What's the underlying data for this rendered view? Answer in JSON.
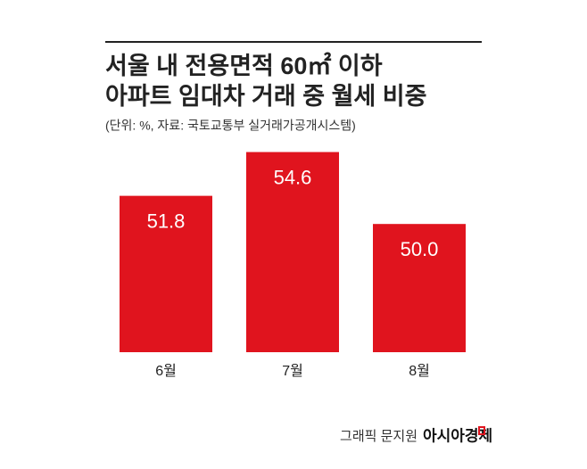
{
  "chart_data": {
    "type": "bar",
    "title": [
      "서울 내 전용면적 60㎡ 이하",
      "아파트 임대차 거래 중 월세 비중"
    ],
    "subtitle": "(단위: %, 자료: 국토교통부 실거래가공개시스템)",
    "categories": [
      "6월",
      "7월",
      "8월"
    ],
    "values": [
      51.8,
      54.6,
      50.0
    ],
    "value_labels": [
      "51.8",
      "54.6",
      "50.0"
    ],
    "color": "#e0141e",
    "ylim": [
      41.8,
      55.2
    ],
    "credit": "그래픽 문지원",
    "brand": "아시아경제"
  }
}
